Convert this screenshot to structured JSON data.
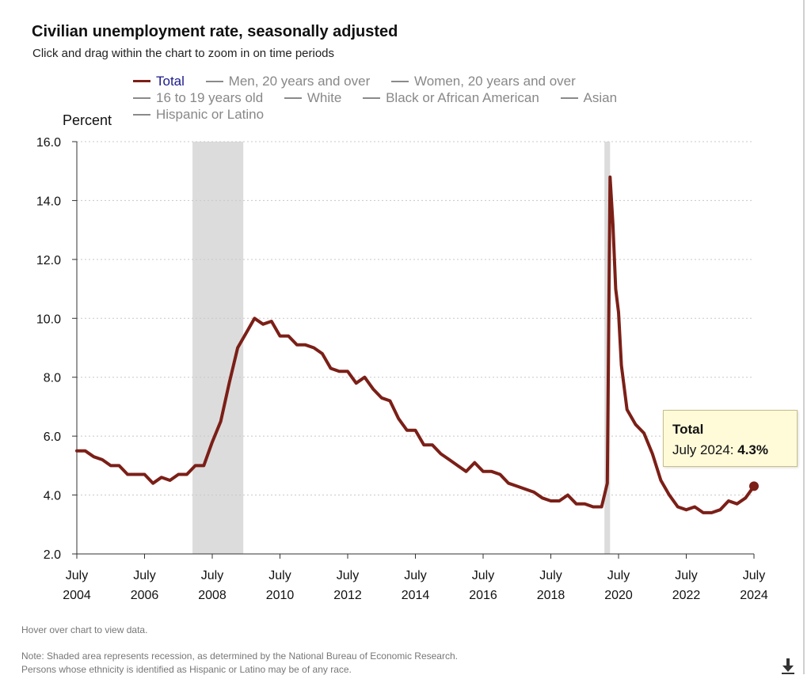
{
  "header": {
    "title": "Civilian unemployment rate, seasonally adjusted",
    "subtitle": "Click and drag within the chart to zoom in on time periods"
  },
  "legend": {
    "items": [
      {
        "label": "Total",
        "active": true
      },
      {
        "label": "Men, 20 years and over",
        "active": false
      },
      {
        "label": "Women, 20 years and over",
        "active": false
      },
      {
        "label": "16 to 19 years old",
        "active": false
      },
      {
        "label": "White",
        "active": false
      },
      {
        "label": "Black or African American",
        "active": false
      },
      {
        "label": "Asian",
        "active": false
      },
      {
        "label": "Hispanic or Latino",
        "active": false
      }
    ]
  },
  "tooltip": {
    "series": "Total",
    "date_label": "July 2024:",
    "value_label": "4.3%"
  },
  "footer": {
    "hover_hint": "Hover over chart to view data.",
    "note_1": "Note: Shaded area represents recession, as determined by the National Bureau of Economic Research.",
    "note_2": "Persons whose ethnicity is identified as Hispanic or Latino may be of any race."
  },
  "icons": {
    "download": "download-arrow-icon"
  },
  "colors": {
    "total_line": "#7b1f17",
    "recession_shade": "#dcdcdc",
    "inactive_legend": "#8a8a8a",
    "tooltip_bg": "#fffbd9"
  },
  "chart_data": {
    "type": "line",
    "title": "Civilian unemployment rate, seasonally adjusted",
    "ylabel": "Percent",
    "ylim": [
      2.0,
      16.0
    ],
    "yticks": [
      "16.0",
      "14.0",
      "12.0",
      "10.0",
      "8.0",
      "6.0",
      "4.0",
      "2.0"
    ],
    "xlim": [
      "2004-07",
      "2024-07"
    ],
    "xticks": [
      {
        "month": "July",
        "year": "2004",
        "date": "2004-07"
      },
      {
        "month": "July",
        "year": "2006",
        "date": "2006-07"
      },
      {
        "month": "July",
        "year": "2008",
        "date": "2008-07"
      },
      {
        "month": "July",
        "year": "2010",
        "date": "2010-07"
      },
      {
        "month": "July",
        "year": "2012",
        "date": "2012-07"
      },
      {
        "month": "July",
        "year": "2014",
        "date": "2014-07"
      },
      {
        "month": "July",
        "year": "2016",
        "date": "2016-07"
      },
      {
        "month": "July",
        "year": "2018",
        "date": "2018-07"
      },
      {
        "month": "July",
        "year": "2020",
        "date": "2020-07"
      },
      {
        "month": "July",
        "year": "2022",
        "date": "2022-07"
      },
      {
        "month": "July",
        "year": "2024",
        "date": "2024-07"
      }
    ],
    "grid": "horizontal dotted",
    "legend_position": "top",
    "recessions": [
      {
        "start": "2007-12",
        "end": "2009-06"
      },
      {
        "start": "2020-02",
        "end": "2020-04"
      }
    ],
    "series": [
      {
        "name": "Total",
        "color": "#7b1f17",
        "points": [
          [
            "2004-07",
            5.5
          ],
          [
            "2004-10",
            5.5
          ],
          [
            "2005-01",
            5.3
          ],
          [
            "2005-04",
            5.2
          ],
          [
            "2005-07",
            5.0
          ],
          [
            "2005-10",
            5.0
          ],
          [
            "2006-01",
            4.7
          ],
          [
            "2006-04",
            4.7
          ],
          [
            "2006-07",
            4.7
          ],
          [
            "2006-10",
            4.4
          ],
          [
            "2007-01",
            4.6
          ],
          [
            "2007-04",
            4.5
          ],
          [
            "2007-07",
            4.7
          ],
          [
            "2007-10",
            4.7
          ],
          [
            "2008-01",
            5.0
          ],
          [
            "2008-04",
            5.0
          ],
          [
            "2008-07",
            5.8
          ],
          [
            "2008-10",
            6.5
          ],
          [
            "2009-01",
            7.8
          ],
          [
            "2009-04",
            9.0
          ],
          [
            "2009-07",
            9.5
          ],
          [
            "2009-10",
            10.0
          ],
          [
            "2010-01",
            9.8
          ],
          [
            "2010-04",
            9.9
          ],
          [
            "2010-07",
            9.4
          ],
          [
            "2010-10",
            9.4
          ],
          [
            "2011-01",
            9.1
          ],
          [
            "2011-04",
            9.1
          ],
          [
            "2011-07",
            9.0
          ],
          [
            "2011-10",
            8.8
          ],
          [
            "2012-01",
            8.3
          ],
          [
            "2012-04",
            8.2
          ],
          [
            "2012-07",
            8.2
          ],
          [
            "2012-10",
            7.8
          ],
          [
            "2013-01",
            8.0
          ],
          [
            "2013-04",
            7.6
          ],
          [
            "2013-07",
            7.3
          ],
          [
            "2013-10",
            7.2
          ],
          [
            "2014-01",
            6.6
          ],
          [
            "2014-04",
            6.2
          ],
          [
            "2014-07",
            6.2
          ],
          [
            "2014-10",
            5.7
          ],
          [
            "2015-01",
            5.7
          ],
          [
            "2015-04",
            5.4
          ],
          [
            "2015-07",
            5.2
          ],
          [
            "2015-10",
            5.0
          ],
          [
            "2016-01",
            4.8
          ],
          [
            "2016-04",
            5.1
          ],
          [
            "2016-07",
            4.8
          ],
          [
            "2016-10",
            4.8
          ],
          [
            "2017-01",
            4.7
          ],
          [
            "2017-04",
            4.4
          ],
          [
            "2017-07",
            4.3
          ],
          [
            "2017-10",
            4.2
          ],
          [
            "2018-01",
            4.1
          ],
          [
            "2018-04",
            3.9
          ],
          [
            "2018-07",
            3.8
          ],
          [
            "2018-10",
            3.8
          ],
          [
            "2019-01",
            4.0
          ],
          [
            "2019-04",
            3.7
          ],
          [
            "2019-07",
            3.7
          ],
          [
            "2019-10",
            3.6
          ],
          [
            "2020-01",
            3.6
          ],
          [
            "2020-03",
            4.4
          ],
          [
            "2020-04",
            14.8
          ],
          [
            "2020-05",
            13.2
          ],
          [
            "2020-06",
            11.0
          ],
          [
            "2020-07",
            10.2
          ],
          [
            "2020-08",
            8.4
          ],
          [
            "2020-10",
            6.9
          ],
          [
            "2021-01",
            6.4
          ],
          [
            "2021-04",
            6.1
          ],
          [
            "2021-07",
            5.4
          ],
          [
            "2021-10",
            4.5
          ],
          [
            "2022-01",
            4.0
          ],
          [
            "2022-04",
            3.6
          ],
          [
            "2022-07",
            3.5
          ],
          [
            "2022-10",
            3.6
          ],
          [
            "2023-01",
            3.4
          ],
          [
            "2023-04",
            3.4
          ],
          [
            "2023-07",
            3.5
          ],
          [
            "2023-10",
            3.8
          ],
          [
            "2024-01",
            3.7
          ],
          [
            "2024-04",
            3.9
          ],
          [
            "2024-07",
            4.3
          ]
        ]
      }
    ],
    "highlight_point": {
      "date": "2024-07",
      "value": 4.3
    }
  }
}
